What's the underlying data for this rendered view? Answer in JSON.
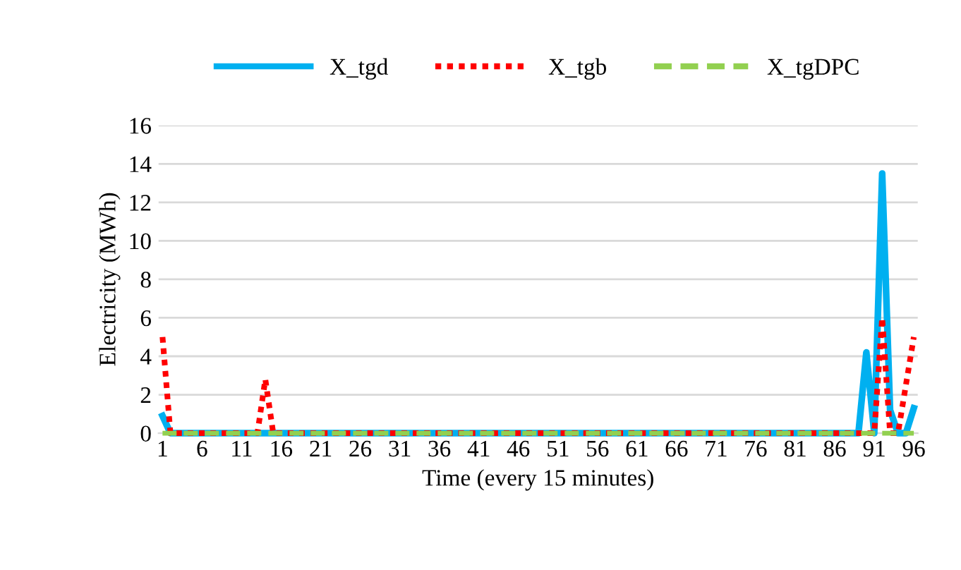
{
  "chart_data": {
    "type": "line",
    "xlabel": "Time (every 15 minutes)",
    "ylabel": "Electricity (MWh)",
    "categories": [
      "1",
      null,
      null,
      null,
      null,
      "6",
      null,
      null,
      null,
      null,
      "11",
      null,
      null,
      null,
      null,
      "16",
      null,
      null,
      null,
      null,
      "21",
      null,
      null,
      null,
      null,
      "26",
      null,
      null,
      null,
      null,
      "31",
      null,
      null,
      null,
      null,
      "36",
      null,
      null,
      null,
      null,
      "41",
      null,
      null,
      null,
      null,
      "46",
      null,
      null,
      null,
      null,
      "51",
      null,
      null,
      null,
      null,
      "56",
      null,
      null,
      null,
      null,
      "61",
      null,
      null,
      null,
      null,
      "66",
      null,
      null,
      null,
      null,
      "71",
      null,
      null,
      null,
      null,
      "76",
      null,
      null,
      null,
      null,
      "81",
      null,
      null,
      null,
      null,
      "86",
      null,
      null,
      null,
      null,
      "91",
      null,
      null,
      null,
      null,
      "96"
    ],
    "series": [
      {
        "name": "X_tgd",
        "color": "#00b0f0",
        "line_style": "solid",
        "values": [
          0.9,
          0,
          0,
          0,
          0,
          0,
          0,
          0,
          0,
          0,
          0,
          0,
          0,
          0,
          0,
          0,
          0,
          0,
          0,
          0,
          0,
          0,
          0,
          0,
          0,
          0,
          0,
          0,
          0,
          0,
          0,
          0,
          0,
          0,
          0,
          0,
          0,
          0,
          0,
          0,
          0,
          0,
          0,
          0,
          0,
          0,
          0,
          0,
          0,
          0,
          0,
          0,
          0,
          0,
          0,
          0,
          0,
          0,
          0,
          0,
          0,
          0,
          0,
          0,
          0,
          0,
          0,
          0,
          0,
          0,
          0,
          0,
          0,
          0,
          0,
          0,
          0,
          0,
          0,
          0,
          0,
          0,
          0,
          0,
          0,
          0,
          0,
          0,
          0,
          4.2,
          0,
          13.5,
          1.2,
          0,
          0,
          1.3
        ]
      },
      {
        "name": "X_tgb",
        "color": "#ff0000",
        "line_style": "dotted",
        "values": [
          5.0,
          0,
          0,
          0,
          0,
          0,
          0,
          0,
          0,
          0,
          0,
          0,
          0,
          2.8,
          0,
          0,
          0,
          0,
          0,
          0,
          0,
          0,
          0,
          0,
          0,
          0,
          0,
          0,
          0,
          0,
          0,
          0,
          0,
          0,
          0,
          0,
          0,
          0,
          0,
          0,
          0,
          0,
          0,
          0,
          0,
          0,
          0,
          0,
          0,
          0,
          0,
          0,
          0,
          0,
          0,
          0,
          0,
          0,
          0,
          0,
          0,
          0,
          0,
          0,
          0,
          0,
          0,
          0,
          0,
          0,
          0,
          0,
          0,
          0,
          0,
          0,
          0,
          0,
          0,
          0,
          0,
          0,
          0,
          0,
          0,
          0,
          0,
          0,
          0,
          0,
          0,
          6.0,
          0,
          0,
          2.5,
          5.0
        ]
      },
      {
        "name": "X_tgDPC",
        "color": "#92d050",
        "line_style": "dashed",
        "values": [
          0,
          0,
          0,
          0,
          0,
          0,
          0,
          0,
          0,
          0,
          0,
          0,
          0,
          0,
          0,
          0,
          0,
          0,
          0,
          0,
          0,
          0,
          0,
          0,
          0,
          0,
          0,
          0,
          0,
          0,
          0,
          0,
          0,
          0,
          0,
          0,
          0,
          0,
          0,
          0,
          0,
          0,
          0,
          0,
          0,
          0,
          0,
          0,
          0,
          0,
          0,
          0,
          0,
          0,
          0,
          0,
          0,
          0,
          0,
          0,
          0,
          0,
          0,
          0,
          0,
          0,
          0,
          0,
          0,
          0,
          0,
          0,
          0,
          0,
          0,
          0,
          0,
          0,
          0,
          0,
          0,
          0,
          0,
          0,
          0,
          0,
          0,
          0,
          0,
          0,
          0,
          0,
          0,
          0,
          0,
          0
        ]
      }
    ],
    "ylim": [
      0,
      16
    ],
    "yticks": [
      0,
      2,
      4,
      6,
      8,
      10,
      12,
      14,
      16
    ],
    "grid": "y",
    "legend": "top",
    "marker": "none"
  }
}
